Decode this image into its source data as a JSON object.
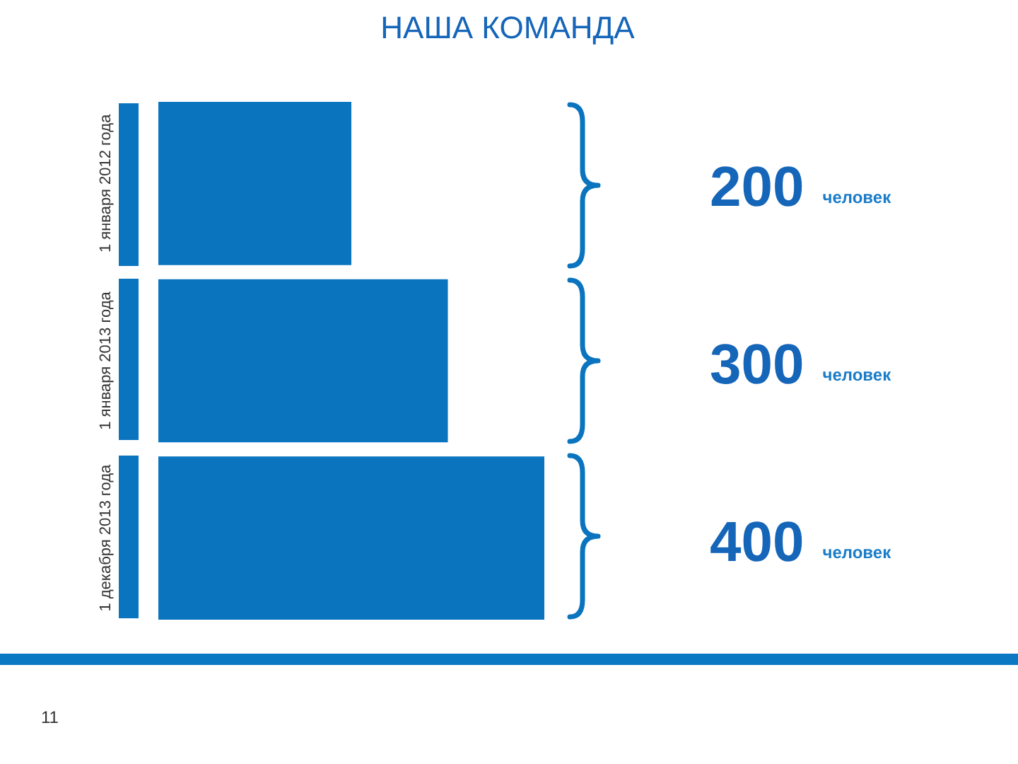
{
  "chart_data": {
    "type": "bar",
    "orientation": "horizontal",
    "title": "НАША КОМАНДА",
    "categories": [
      "1 января 2012 года",
      "1 января 2013 года",
      "1 декабря 2013 года"
    ],
    "values": [
      200,
      300,
      400
    ],
    "color": "#0a74bf",
    "value_labels": [
      "200 человек",
      "300 человек",
      "400 человек"
    ],
    "xlim": [
      0,
      400
    ],
    "tick_labels": "y",
    "annotations": [
      "11"
    ]
  }
}
